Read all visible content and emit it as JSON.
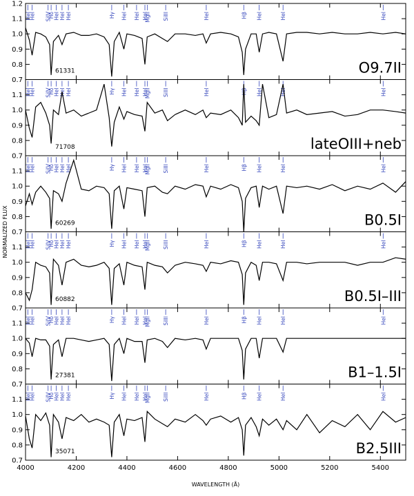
{
  "chart_data": [
    {
      "type": "line",
      "label": "O9.7II",
      "id": "61331",
      "color": "#000000",
      "xlim": [
        4000,
        5500
      ],
      "ylim": [
        0.7,
        1.2
      ],
      "yticks": [
        0.7,
        0.8,
        0.9,
        {
          "value": 1,
          "label": "1.0"
        },
        1.1,
        1.2
      ],
      "ylabel": "NORMALIZED FLUX",
      "lines": [
        {
          "x": 4009,
          "label": "HeI"
        },
        {
          "x": 4026,
          "label": "HeI"
        },
        {
          "x": 4089,
          "label": "SiIV"
        },
        {
          "x": 4101,
          "label": "Hδ"
        },
        {
          "x": 4121,
          "label": "HeI"
        },
        {
          "x": 4144,
          "label": "HeI"
        },
        {
          "x": 4169,
          "label": "HeI"
        },
        {
          "x": 4340,
          "label": "Hγ"
        },
        {
          "x": 4388,
          "label": "HeI"
        },
        {
          "x": 4438,
          "label": "HeI"
        },
        {
          "x": 4471,
          "label": "HeI"
        },
        {
          "x": 4481,
          "label": "MgII"
        },
        {
          "x": 4553,
          "label": "SiIII"
        },
        {
          "x": 4713,
          "label": "HeI"
        },
        {
          "x": 4861,
          "label": "Hβ"
        },
        {
          "x": 4922,
          "label": "HeI"
        },
        {
          "x": 5016,
          "label": "HeI"
        },
        {
          "x": 5411,
          "label": "HeI"
        }
      ],
      "x": [
        4000,
        4015,
        4026,
        4040,
        4060,
        4080,
        4095,
        4101,
        4110,
        4130,
        4144,
        4160,
        4190,
        4220,
        4250,
        4280,
        4310,
        4330,
        4340,
        4350,
        4370,
        4388,
        4400,
        4430,
        4460,
        4471,
        4480,
        4510,
        4540,
        4560,
        4590,
        4630,
        4670,
        4700,
        4713,
        4730,
        4770,
        4810,
        4840,
        4855,
        4861,
        4868,
        4890,
        4910,
        4922,
        4935,
        4960,
        4990,
        5016,
        5030,
        5070,
        5110,
        5160,
        5210,
        5260,
        5310,
        5360,
        5410,
        5460,
        5500
      ],
      "values": [
        1.04,
        0.96,
        0.86,
        1.01,
        1.0,
        0.98,
        0.93,
        0.73,
        0.95,
        0.99,
        0.93,
        1.0,
        1.01,
        0.99,
        0.99,
        1.0,
        0.98,
        0.93,
        0.72,
        0.95,
        1.01,
        0.9,
        1.0,
        0.99,
        0.97,
        0.8,
        0.98,
        1.0,
        0.97,
        0.95,
        1.0,
        1.0,
        0.99,
        1.0,
        0.94,
        1.0,
        1.01,
        1.0,
        0.98,
        0.88,
        0.73,
        0.9,
        1.0,
        1.0,
        0.88,
        1.0,
        1.01,
        1.0,
        0.82,
        1.0,
        1.01,
        1.01,
        1.0,
        1.01,
        1.0,
        1.0,
        1.01,
        1.0,
        1.01,
        1.0
      ]
    },
    {
      "type": "line",
      "label": "lateOIII+neb",
      "id": "71708",
      "color": "#000000",
      "xlim": [
        4000,
        5500
      ],
      "ylim": [
        0.7,
        1.2
      ],
      "yticks": [
        0.7,
        0.8,
        0.9,
        {
          "value": 1,
          "label": "1.0"
        },
        1.1
      ],
      "x": [
        4000,
        4015,
        4026,
        4040,
        4060,
        4080,
        4095,
        4101,
        4110,
        4130,
        4144,
        4160,
        4190,
        4220,
        4250,
        4280,
        4310,
        4330,
        4340,
        4350,
        4370,
        4388,
        4400,
        4430,
        4460,
        4471,
        4480,
        4510,
        4540,
        4560,
        4590,
        4630,
        4670,
        4700,
        4713,
        4730,
        4770,
        4810,
        4840,
        4855,
        4861,
        4868,
        4890,
        4910,
        4922,
        4935,
        4960,
        4990,
        5016,
        5030,
        5070,
        5110,
        5160,
        5210,
        5260,
        5310,
        5360,
        5410,
        5460,
        5500
      ],
      "values": [
        1.0,
        0.88,
        0.82,
        1.02,
        1.05,
        0.98,
        0.9,
        0.78,
        1.0,
        0.97,
        1.12,
        0.98,
        1.0,
        0.96,
        0.98,
        1.0,
        1.17,
        0.95,
        0.76,
        0.92,
        1.02,
        0.94,
        0.99,
        0.97,
        0.96,
        0.86,
        1.05,
        0.98,
        1.0,
        0.93,
        0.97,
        1.0,
        0.97,
        1.0,
        0.95,
        0.98,
        0.97,
        1.0,
        0.95,
        0.9,
        1.17,
        0.92,
        0.96,
        0.93,
        0.9,
        1.17,
        0.95,
        0.97,
        1.17,
        0.98,
        1.0,
        0.97,
        0.98,
        0.99,
        0.96,
        0.97,
        1.0,
        1.0,
        0.99,
        0.98
      ]
    },
    {
      "type": "line",
      "label": "B0.5I",
      "id": "60269",
      "color": "#000000",
      "xlim": [
        4000,
        5500
      ],
      "ylim": [
        0.7,
        1.2
      ],
      "yticks": [
        0.7,
        0.8,
        0.9,
        {
          "value": 1,
          "label": "1.0"
        },
        1.1
      ],
      "x": [
        4000,
        4015,
        4026,
        4040,
        4060,
        4080,
        4095,
        4101,
        4110,
        4130,
        4144,
        4160,
        4190,
        4220,
        4250,
        4280,
        4310,
        4330,
        4340,
        4350,
        4370,
        4388,
        4400,
        4430,
        4460,
        4471,
        4480,
        4510,
        4540,
        4560,
        4590,
        4630,
        4670,
        4700,
        4713,
        4730,
        4770,
        4810,
        4840,
        4855,
        4861,
        4868,
        4890,
        4910,
        4922,
        4935,
        4960,
        4990,
        5016,
        5030,
        5070,
        5110,
        5160,
        5210,
        5260,
        5310,
        5360,
        5410,
        5460,
        5500
      ],
      "values": [
        0.87,
        0.95,
        0.88,
        0.96,
        1.0,
        0.96,
        0.92,
        0.72,
        0.97,
        0.95,
        0.9,
        1.02,
        1.17,
        0.98,
        0.97,
        1.0,
        0.99,
        0.95,
        0.72,
        0.97,
        1.0,
        0.85,
        0.99,
        0.98,
        0.97,
        0.8,
        0.99,
        1.0,
        0.96,
        0.95,
        1.0,
        0.98,
        1.01,
        1.0,
        0.93,
        1.0,
        0.98,
        1.01,
        0.99,
        0.9,
        0.7,
        0.92,
        0.99,
        1.0,
        0.86,
        1.0,
        0.98,
        1.0,
        0.82,
        1.0,
        0.99,
        1.0,
        0.98,
        1.01,
        0.97,
        1.0,
        0.98,
        1.02,
        0.96,
        1.03
      ]
    },
    {
      "type": "line",
      "label": "B0.5I–III",
      "id": "60882",
      "color": "#000000",
      "xlim": [
        4000,
        5500
      ],
      "ylim": [
        0.7,
        1.2
      ],
      "yticks": [
        0.7,
        0.8,
        0.9,
        {
          "value": 1,
          "label": "1.0"
        },
        1.1
      ],
      "x": [
        4000,
        4015,
        4026,
        4040,
        4060,
        4080,
        4095,
        4101,
        4110,
        4130,
        4144,
        4160,
        4190,
        4220,
        4250,
        4280,
        4310,
        4330,
        4340,
        4350,
        4370,
        4388,
        4400,
        4430,
        4460,
        4471,
        4480,
        4510,
        4540,
        4560,
        4590,
        4630,
        4670,
        4700,
        4713,
        4730,
        4770,
        4810,
        4840,
        4855,
        4861,
        4868,
        4890,
        4910,
        4922,
        4935,
        4960,
        4990,
        5016,
        5030,
        5070,
        5110,
        5160,
        5210,
        5260,
        5310,
        5360,
        5410,
        5460,
        5500
      ],
      "values": [
        0.8,
        0.75,
        0.82,
        1.0,
        0.98,
        0.97,
        0.93,
        0.72,
        1.02,
        0.98,
        0.85,
        1.0,
        1.02,
        0.98,
        0.97,
        0.98,
        1.0,
        0.96,
        0.72,
        0.96,
        0.99,
        0.85,
        1.0,
        0.98,
        0.97,
        0.82,
        1.0,
        0.98,
        0.97,
        0.93,
        0.98,
        1.0,
        0.99,
        0.98,
        0.94,
        1.0,
        0.99,
        1.01,
        1.0,
        0.92,
        0.72,
        0.93,
        1.0,
        0.98,
        0.88,
        1.0,
        1.0,
        0.99,
        0.88,
        1.0,
        1.0,
        0.99,
        1.0,
        1.0,
        1.0,
        0.98,
        1.0,
        1.0,
        1.03,
        1.02
      ]
    },
    {
      "type": "line",
      "label": "B1–1.5I",
      "id": "27381",
      "color": "#000000",
      "xlim": [
        4000,
        5500
      ],
      "ylim": [
        0.7,
        1.2
      ],
      "yticks": [
        0.7,
        0.8,
        0.9,
        {
          "value": 1,
          "label": "1.0"
        },
        1.1
      ],
      "x": [
        4000,
        4015,
        4026,
        4040,
        4060,
        4080,
        4095,
        4101,
        4110,
        4130,
        4144,
        4160,
        4190,
        4220,
        4250,
        4280,
        4310,
        4330,
        4340,
        4350,
        4370,
        4388,
        4400,
        4430,
        4460,
        4471,
        4480,
        4510,
        4540,
        4560,
        4590,
        4630,
        4670,
        4700,
        4713,
        4730,
        4770,
        4810,
        4840,
        4855,
        4861,
        4868,
        4890,
        4910,
        4922,
        4935,
        4960,
        4990,
        5016,
        5030,
        5070,
        5110,
        5160,
        5210,
        5260,
        5310,
        5360,
        5410,
        5460,
        5500
      ],
      "values": [
        1.0,
        0.97,
        0.88,
        1.0,
        0.99,
        0.99,
        0.95,
        0.73,
        0.96,
        0.99,
        0.88,
        1.0,
        1.0,
        0.99,
        0.98,
        0.99,
        1.0,
        0.96,
        0.72,
        0.96,
        1.0,
        0.9,
        1.0,
        0.98,
        0.98,
        0.84,
        0.99,
        1.0,
        0.98,
        0.94,
        1.0,
        0.99,
        1.0,
        0.99,
        0.93,
        1.0,
        1.0,
        1.0,
        1.0,
        0.92,
        0.73,
        0.93,
        1.0,
        1.0,
        0.87,
        1.0,
        1.0,
        1.0,
        0.91,
        1.0,
        1.0,
        1.0,
        1.0,
        1.0,
        1.0,
        1.0,
        1.0,
        1.0,
        1.0,
        1.0
      ]
    },
    {
      "type": "line",
      "label": "B2.5III",
      "id": "35071",
      "color": "#000000",
      "xlim": [
        4000,
        5500
      ],
      "ylim": [
        0.7,
        1.2
      ],
      "yticks": [
        0.7,
        0.8,
        0.9,
        {
          "value": 1,
          "label": "1.0"
        },
        1.1
      ],
      "xticks": [
        4000,
        4200,
        4400,
        4600,
        4800,
        5000,
        5200,
        5400
      ],
      "xlabel": "WAVELENGTH (Å)",
      "x": [
        4000,
        4015,
        4026,
        4040,
        4060,
        4080,
        4095,
        4101,
        4110,
        4130,
        4144,
        4160,
        4190,
        4220,
        4250,
        4280,
        4310,
        4330,
        4340,
        4350,
        4370,
        4388,
        4400,
        4430,
        4460,
        4471,
        4480,
        4510,
        4540,
        4560,
        4590,
        4630,
        4670,
        4700,
        4713,
        4730,
        4770,
        4810,
        4840,
        4855,
        4861,
        4868,
        4890,
        4910,
        4922,
        4935,
        4960,
        4990,
        5016,
        5030,
        5070,
        5110,
        5160,
        5210,
        5260,
        5310,
        5360,
        5410,
        5460,
        5500
      ],
      "values": [
        0.99,
        0.84,
        0.78,
        1.0,
        0.96,
        1.01,
        0.93,
        0.72,
        1.0,
        0.95,
        0.84,
        0.98,
        0.96,
        1.0,
        0.95,
        0.97,
        0.95,
        0.93,
        0.72,
        0.95,
        1.0,
        0.86,
        0.97,
        0.96,
        0.98,
        0.82,
        1.02,
        0.97,
        0.94,
        0.92,
        0.97,
        0.95,
        1.0,
        0.96,
        0.93,
        0.97,
        0.99,
        0.95,
        0.98,
        0.9,
        0.73,
        0.93,
        0.98,
        0.92,
        0.86,
        0.97,
        0.93,
        0.97,
        0.9,
        0.96,
        0.9,
        1.0,
        0.88,
        0.96,
        0.92,
        1.0,
        0.9,
        1.02,
        0.95,
        0.98
      ]
    }
  ]
}
